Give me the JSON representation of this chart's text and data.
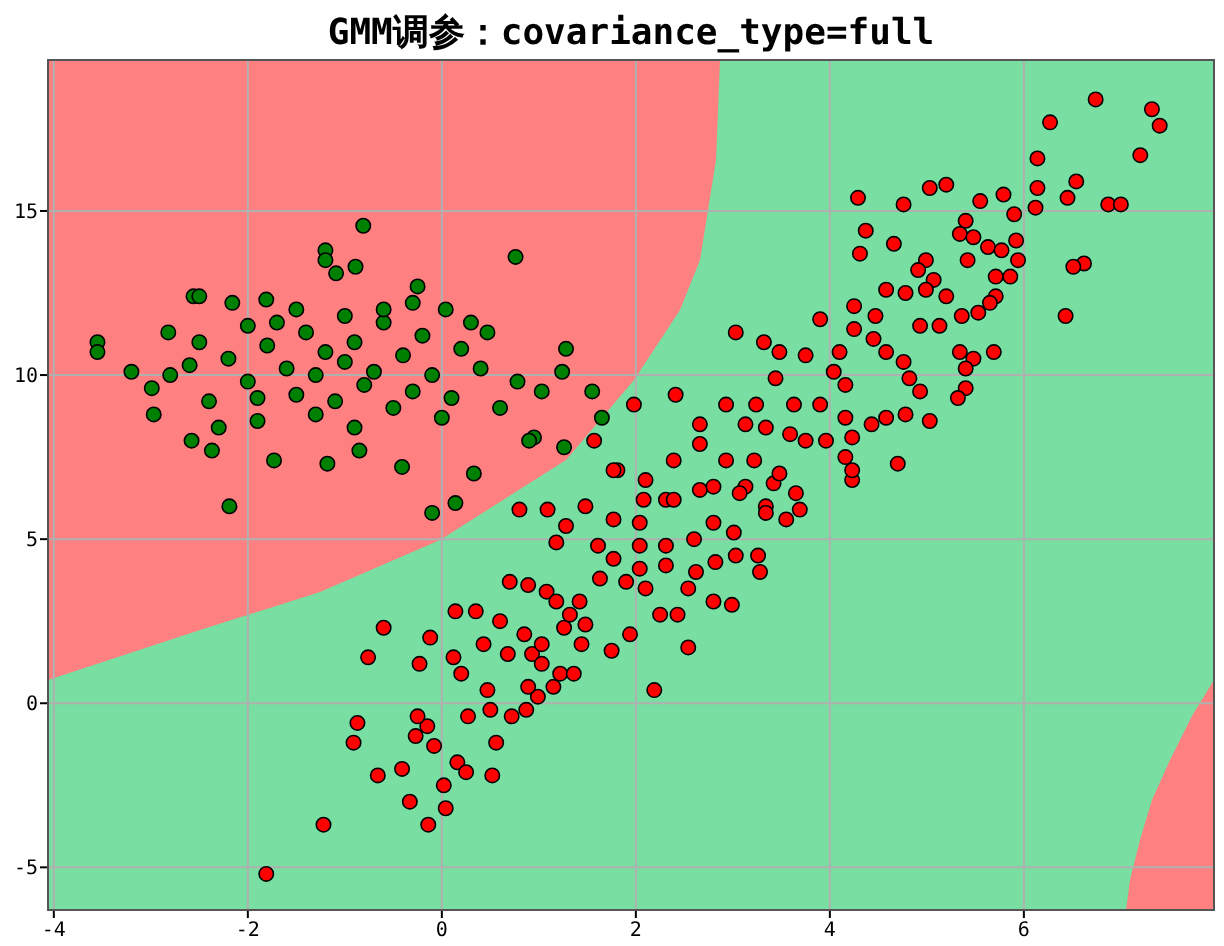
{
  "chart_data": {
    "type": "scatter",
    "title": "GMM调参：covariance_type=full",
    "xlim": [
      -4.06,
      7.96
    ],
    "ylim": [
      -6.3,
      19.6
    ],
    "xticks": [
      -4,
      -2,
      0,
      2,
      4,
      6
    ],
    "yticks": [
      -5,
      0,
      5,
      10,
      15
    ],
    "grid": true,
    "marker": "circle",
    "series": [
      {
        "color": "#008000",
        "x": [
          -0.81,
          0.76,
          -3.55,
          -3.55,
          -1.2,
          -1.2,
          -2.56,
          -2.5,
          -2.16,
          -1.81,
          -1.09,
          -0.89,
          -0.25,
          1.28,
          -2.99,
          -2.97,
          -2.58,
          -2.37,
          -2.19,
          -1.73,
          -1.18,
          -0.85,
          -0.41,
          0.33,
          -0.1,
          0.14,
          0.95,
          1.55,
          1.24,
          1.03,
          0.78,
          0.47,
          0.04,
          -2.82,
          -2.5,
          1.65,
          1.26,
          0.9,
          -2.2,
          -2.0,
          -1.8,
          -1.6,
          -1.5,
          -1.4,
          -1.3,
          -1.2,
          -1.1,
          -1.0,
          -0.9,
          -0.8,
          -0.7,
          -0.6,
          -0.5,
          -0.4,
          -0.3,
          -0.2,
          -0.1,
          0.1,
          0.2,
          0.4,
          0.6,
          -2.4,
          -2.6,
          -1.9,
          -1.7,
          -1.3,
          -0.9,
          -0.6,
          -0.3,
          -1.5,
          -2.0,
          -2.8,
          -3.2,
          -1.0,
          0.0,
          -1.9,
          0.3,
          -2.3
        ],
        "values": [
          14.55,
          13.6,
          11.0,
          10.7,
          13.8,
          13.5,
          12.4,
          12.4,
          12.2,
          12.3,
          13.1,
          13.3,
          12.7,
          10.8,
          9.6,
          8.8,
          8.0,
          7.7,
          6.0,
          7.4,
          7.3,
          7.7,
          7.2,
          7.0,
          5.8,
          6.1,
          8.1,
          9.5,
          10.1,
          9.5,
          9.8,
          11.3,
          12.0,
          11.3,
          11.0,
          8.7,
          7.8,
          8.0,
          10.5,
          9.8,
          10.9,
          10.2,
          9.4,
          11.3,
          10.0,
          10.7,
          9.2,
          10.4,
          11.0,
          9.7,
          10.1,
          11.6,
          9.0,
          10.6,
          9.5,
          11.2,
          10.0,
          9.3,
          10.8,
          10.2,
          9.0,
          9.2,
          10.3,
          8.6,
          11.6,
          8.8,
          8.4,
          12.0,
          12.2,
          12.0,
          11.5,
          10.0,
          10.1,
          11.8,
          8.7,
          9.3,
          11.6,
          8.4
        ]
      },
      {
        "color": "#ff0000",
        "x": [
          -1.81,
          -1.22,
          -0.76,
          -0.6,
          -0.87,
          -0.91,
          -0.66,
          -0.33,
          -0.14,
          0.04,
          0.02,
          -0.41,
          -0.08,
          -0.27,
          -0.15,
          -0.25,
          -0.23,
          -0.12,
          0.14,
          0.35,
          0.16,
          0.25,
          0.52,
          0.56,
          0.27,
          0.5,
          0.72,
          0.87,
          0.99,
          0.89,
          0.47,
          0.2,
          0.12,
          0.43,
          0.68,
          0.93,
          1.03,
          1.22,
          1.36,
          1.15,
          2.19,
          2.54,
          1.94,
          1.75,
          1.44,
          1.48,
          1.26,
          1.03,
          0.85,
          0.6,
          0.8,
          1.09,
          1.28,
          1.48,
          1.81,
          1.18,
          0.7,
          0.89,
          1.08,
          1.18,
          1.32,
          1.42,
          1.63,
          1.9,
          2.1,
          2.25,
          2.43,
          2.54,
          2.8,
          2.99,
          3.26,
          3.28,
          3.03,
          2.82,
          2.62,
          2.31,
          2.04,
          1.77,
          1.61,
          2.04,
          2.31,
          2.6,
          2.8,
          3.01,
          3.34,
          3.55,
          3.69,
          3.42,
          3.13,
          2.66,
          2.31,
          2.04,
          1.77,
          6.74,
          7.32,
          7.4,
          7.2,
          6.27,
          6.14,
          6.14,
          6.54,
          6.45,
          6.87,
          7.0,
          6.62,
          6.51,
          6.43,
          6.12,
          5.9,
          5.79,
          5.55,
          5.2,
          5.03,
          4.76,
          4.29,
          4.37,
          4.66,
          4.31,
          5.4,
          5.34,
          5.48,
          5.63,
          5.77,
          5.92,
          5.94,
          5.86,
          5.71,
          5.42,
          4.99,
          4.91,
          5.07,
          5.2,
          5.71,
          5.65,
          5.53,
          5.36,
          5.34,
          5.69,
          5.48,
          5.4,
          5.4,
          5.32,
          5.03,
          4.7,
          4.23,
          4.23,
          4.16,
          4.23,
          4.43,
          4.58,
          4.78,
          4.93,
          4.82,
          4.76,
          4.58,
          4.45,
          4.25,
          4.1,
          3.9,
          4.25,
          4.47,
          4.58,
          4.78,
          4.99,
          5.13,
          4.93,
          3.03,
          3.32,
          3.48,
          3.75,
          4.04,
          4.16,
          3.9,
          3.63,
          3.44,
          3.24,
          3.59,
          3.75,
          3.96,
          4.16,
          3.34,
          3.13,
          2.93,
          2.66,
          2.41,
          1.98,
          1.57,
          1.77,
          2.1,
          2.39,
          2.66,
          2.93,
          3.22,
          3.48,
          3.65,
          3.34,
          3.07,
          2.8,
          2.39,
          2.08
        ],
        "values": [
          -5.2,
          -3.7,
          1.4,
          2.3,
          -0.6,
          -1.2,
          -2.2,
          -3.0,
          -3.7,
          -3.2,
          -2.5,
          -2.0,
          -1.3,
          -1.0,
          -0.7,
          -0.4,
          1.2,
          2.0,
          2.8,
          2.8,
          -1.8,
          -2.1,
          -2.2,
          -1.2,
          -0.4,
          -0.2,
          -0.4,
          -0.2,
          0.2,
          0.5,
          0.4,
          0.9,
          1.4,
          1.8,
          1.5,
          1.5,
          1.2,
          0.9,
          0.9,
          0.5,
          0.4,
          1.7,
          2.1,
          1.6,
          1.8,
          2.4,
          2.3,
          1.8,
          2.1,
          2.5,
          5.9,
          5.9,
          5.4,
          6.0,
          7.1,
          4.9,
          3.7,
          3.6,
          3.4,
          3.1,
          2.7,
          3.1,
          3.8,
          3.7,
          3.5,
          2.7,
          2.7,
          3.5,
          3.1,
          3.0,
          4.5,
          4.0,
          4.5,
          4.3,
          4.0,
          4.2,
          4.1,
          4.4,
          4.8,
          4.8,
          4.8,
          5.0,
          5.5,
          5.2,
          6.0,
          5.6,
          5.9,
          6.7,
          6.6,
          6.5,
          6.2,
          5.5,
          5.6,
          18.4,
          18.1,
          17.6,
          16.7,
          17.7,
          16.6,
          15.7,
          15.9,
          15.4,
          15.2,
          15.2,
          13.4,
          13.3,
          11.8,
          15.1,
          14.9,
          15.5,
          15.3,
          15.8,
          15.7,
          15.2,
          15.4,
          14.4,
          14.0,
          13.7,
          14.7,
          14.3,
          14.2,
          13.9,
          13.8,
          14.1,
          13.5,
          13.0,
          13.0,
          13.5,
          13.5,
          13.2,
          12.9,
          12.4,
          12.4,
          12.2,
          11.9,
          11.8,
          10.7,
          10.7,
          10.5,
          10.2,
          9.6,
          9.3,
          8.6,
          7.3,
          6.8,
          7.1,
          7.5,
          8.1,
          8.5,
          8.7,
          8.8,
          9.5,
          9.9,
          10.4,
          10.7,
          11.1,
          11.4,
          10.7,
          11.7,
          12.1,
          11.8,
          12.6,
          12.5,
          12.6,
          11.5,
          11.5,
          11.3,
          11.0,
          10.7,
          10.6,
          10.1,
          9.7,
          9.1,
          9.1,
          9.9,
          9.1,
          8.2,
          8.0,
          8.0,
          8.7,
          8.4,
          8.5,
          9.1,
          8.5,
          9.4,
          9.1,
          8.0,
          7.1,
          6.8,
          7.4,
          7.9,
          7.4,
          7.4,
          7.0,
          6.4,
          5.8,
          6.4,
          6.6,
          6.2,
          6.2
        ]
      }
    ]
  }
}
